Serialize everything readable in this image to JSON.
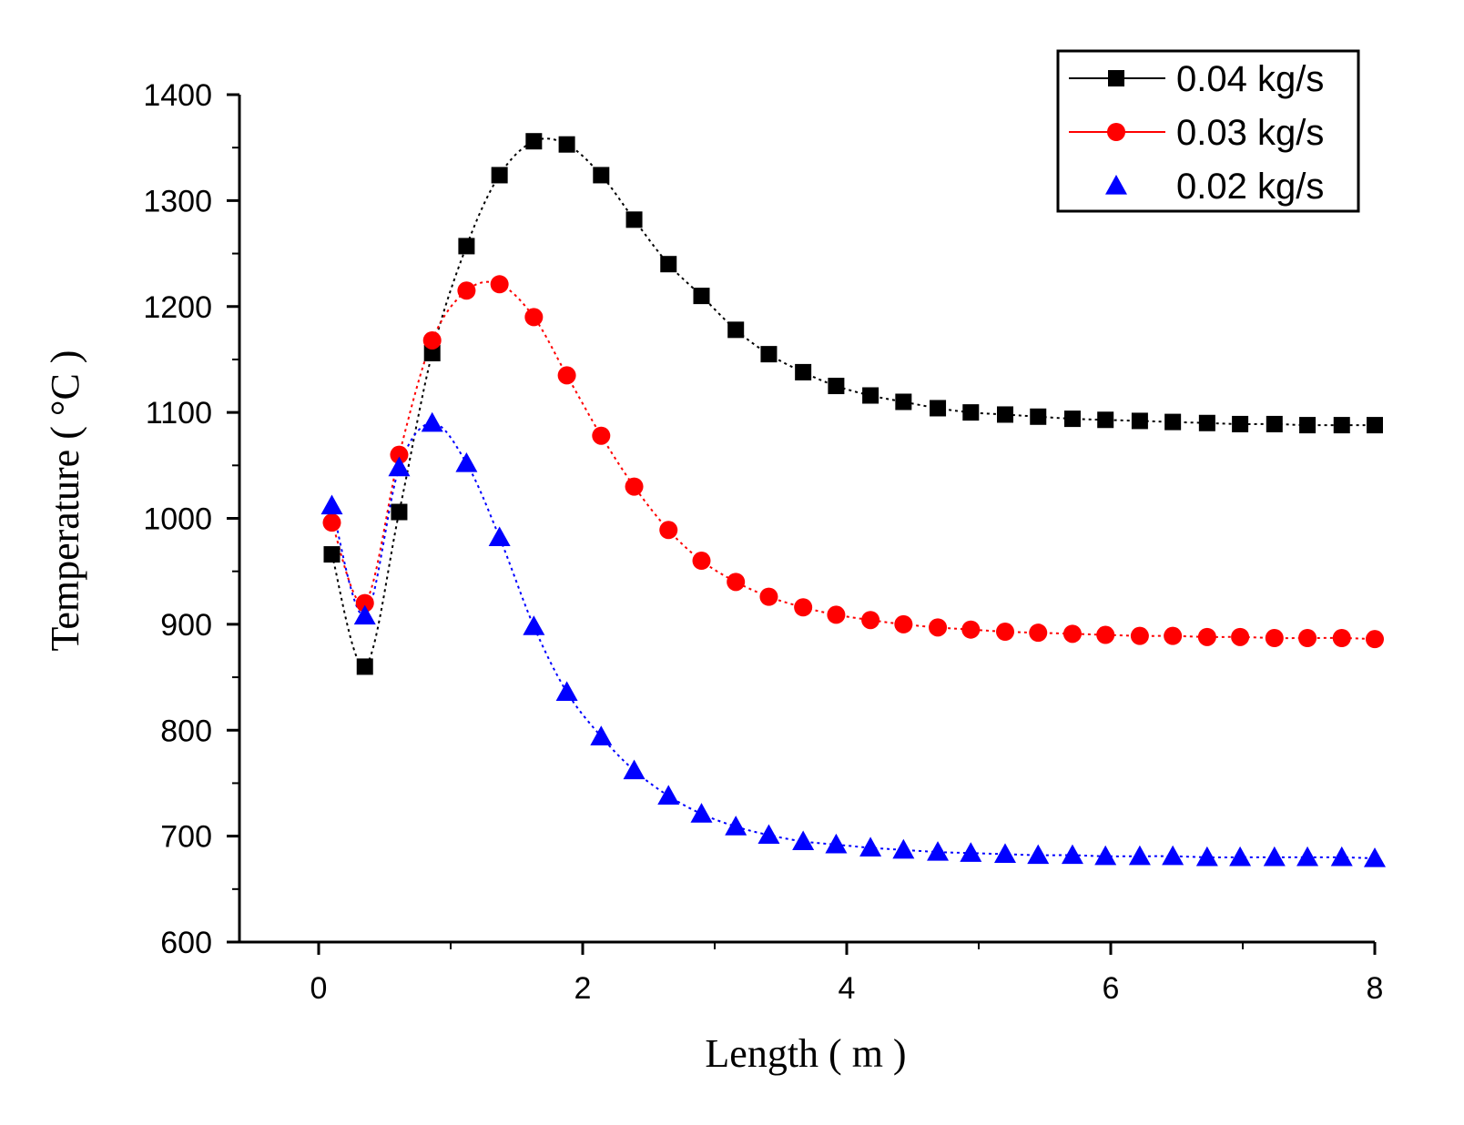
{
  "chart_data": {
    "type": "line",
    "title": "",
    "xlabel": "Length ( m )",
    "ylabel": "Temperature ( °C )",
    "xlim": [
      -0.6,
      8
    ],
    "ylim": [
      600,
      1400
    ],
    "xticks": [
      0,
      2,
      4,
      6,
      8
    ],
    "yticks": [
      600,
      700,
      800,
      900,
      1000,
      1100,
      1200,
      1300,
      1400
    ],
    "xtick_labels": [
      "0",
      "2",
      "4",
      "6",
      "8"
    ],
    "ytick_labels": [
      "600",
      "700",
      "800",
      "900",
      "1000",
      "1100",
      "1200",
      "1300",
      "1400"
    ],
    "grid": false,
    "legend_position": "top-right",
    "x": [
      0.1,
      0.35,
      0.61,
      0.86,
      1.12,
      1.37,
      1.63,
      1.88,
      2.14,
      2.39,
      2.65,
      2.9,
      3.16,
      3.41,
      3.67,
      3.92,
      4.18,
      4.43,
      4.69,
      4.94,
      5.2,
      5.45,
      5.71,
      5.96,
      6.22,
      6.47,
      6.73,
      6.98,
      7.24,
      7.49,
      7.75,
      8.0
    ],
    "series": [
      {
        "name": "0.04 kg/s",
        "color": "#000000",
        "marker": "square",
        "line": "dotted",
        "values": [
          966,
          860,
          1006,
          1156,
          1257,
          1324,
          1356,
          1353,
          1324,
          1282,
          1240,
          1210,
          1178,
          1155,
          1138,
          1125,
          1116,
          1110,
          1104,
          1100,
          1098,
          1096,
          1094,
          1093,
          1092,
          1091,
          1090,
          1089,
          1089,
          1088,
          1088,
          1088
        ]
      },
      {
        "name": "0.03 kg/s",
        "color": "#ff0000",
        "marker": "circle",
        "line": "dotted",
        "values": [
          996,
          920,
          1060,
          1168,
          1215,
          1221,
          1190,
          1135,
          1078,
          1030,
          989,
          960,
          940,
          926,
          916,
          909,
          904,
          900,
          897,
          895,
          893,
          892,
          891,
          890,
          889,
          889,
          888,
          888,
          887,
          887,
          887,
          886
        ]
      },
      {
        "name": "0.02 kg/s",
        "color": "#0000ff",
        "marker": "triangle",
        "line": "dotted",
        "values": [
          1012,
          908,
          1048,
          1090,
          1052,
          982,
          898,
          836,
          794,
          762,
          738,
          721,
          709,
          701,
          695,
          692,
          689,
          687,
          685,
          684,
          683,
          682,
          682,
          681,
          681,
          681,
          680,
          680,
          680,
          680,
          680,
          679
        ]
      }
    ]
  }
}
